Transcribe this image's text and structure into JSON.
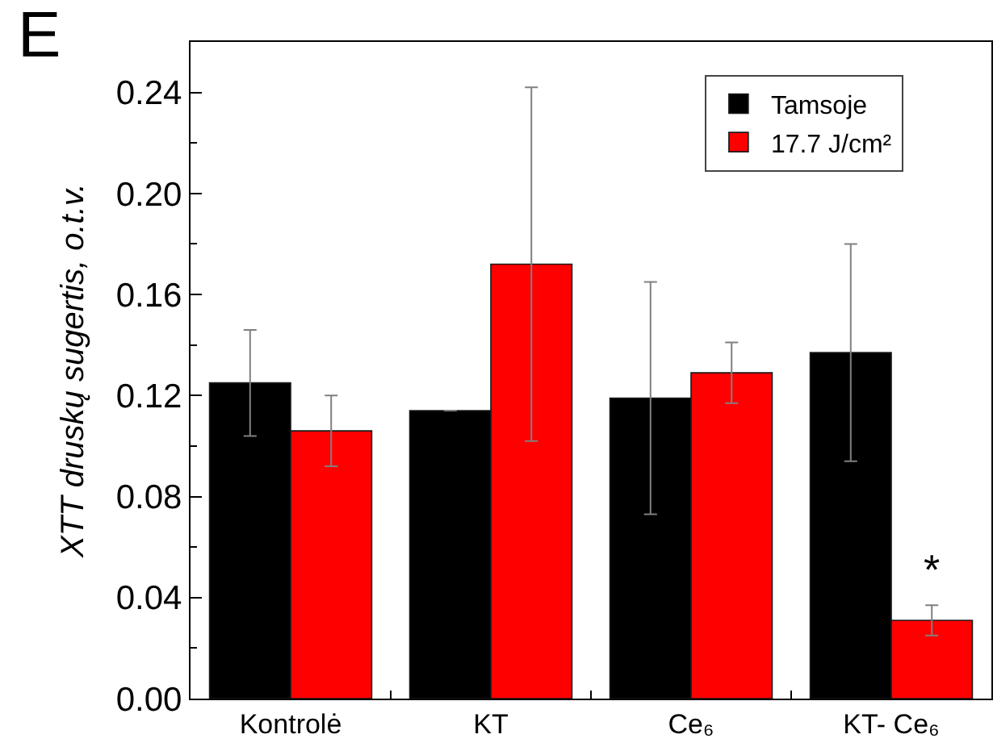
{
  "chart_data": {
    "type": "bar",
    "ylabel": "XTT druskų sugertis, o.t.v.",
    "annotations": [
      "E",
      {
        "text": "*",
        "x": "KT- Ce₆",
        "y": 0.04
      }
    ],
    "categories": [
      "Kontrolė",
      "KT",
      "Ce₆",
      "KT- Ce₆"
    ],
    "series": [
      {
        "name": "Tamsoje",
        "color": "#000000",
        "values": [
          0.125,
          0.114,
          0.119,
          0.137
        ],
        "errors": [
          0.021,
          null,
          0.046,
          0.043
        ]
      },
      {
        "name": "17.7 J/cm²",
        "color": "#ff0000",
        "values": [
          0.106,
          0.172,
          0.129,
          0.031
        ],
        "errors": [
          0.014,
          0.07,
          0.012,
          0.006
        ]
      }
    ],
    "ylim": [
      0,
      0.26
    ],
    "yticks": [
      {
        "value": 0,
        "label": "0.00"
      },
      {
        "value": 0.02,
        "label": null
      },
      {
        "value": 0.04,
        "label": "0.04"
      },
      {
        "value": 0.06,
        "label": null
      },
      {
        "value": 0.08,
        "label": "0.08"
      },
      {
        "value": 0.1,
        "label": null
      },
      {
        "value": 0.12,
        "label": "0.12"
      },
      {
        "value": 0.14,
        "label": null
      },
      {
        "value": 0.16,
        "label": "0.16"
      },
      {
        "value": 0.18,
        "label": null
      },
      {
        "value": 0.2,
        "label": "0.20"
      },
      {
        "value": 0.22,
        "label": null
      },
      {
        "value": 0.24,
        "label": "0.24"
      }
    ],
    "legend": "top right"
  }
}
